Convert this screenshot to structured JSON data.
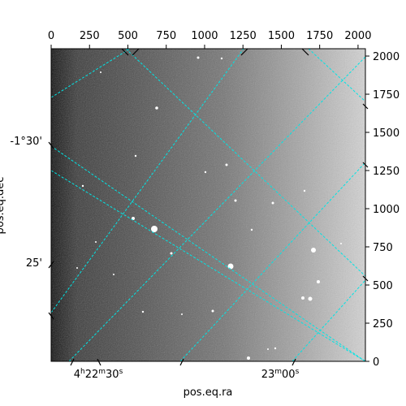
{
  "chart_data": {
    "type": "image",
    "title": "",
    "colormap": "gray",
    "grid_color": "#00e5e5",
    "pixel_axes": {
      "top_ticks": [
        "0",
        "250",
        "500",
        "750",
        "1000",
        "1250",
        "1500",
        "1750",
        "2000"
      ],
      "top_values": [
        0,
        250,
        500,
        750,
        1000,
        1250,
        1500,
        1750,
        2000
      ],
      "right_ticks": [
        "0",
        "250",
        "500",
        "750",
        "1000",
        "1250",
        "1500",
        "1750",
        "2000"
      ],
      "right_values": [
        0,
        250,
        500,
        750,
        1000,
        1250,
        1500,
        1750,
        2000
      ],
      "xlim": [
        0,
        2048
      ],
      "ylim": [
        0,
        2048
      ]
    },
    "world_axes": {
      "xlabel": "pos.eq.ra",
      "ylabel": "pos.eq.dec",
      "ra_ticks": [
        "4h22m30s",
        "23m00s"
      ],
      "dec_ticks": [
        "-1°30'",
        "25'"
      ]
    }
  }
}
